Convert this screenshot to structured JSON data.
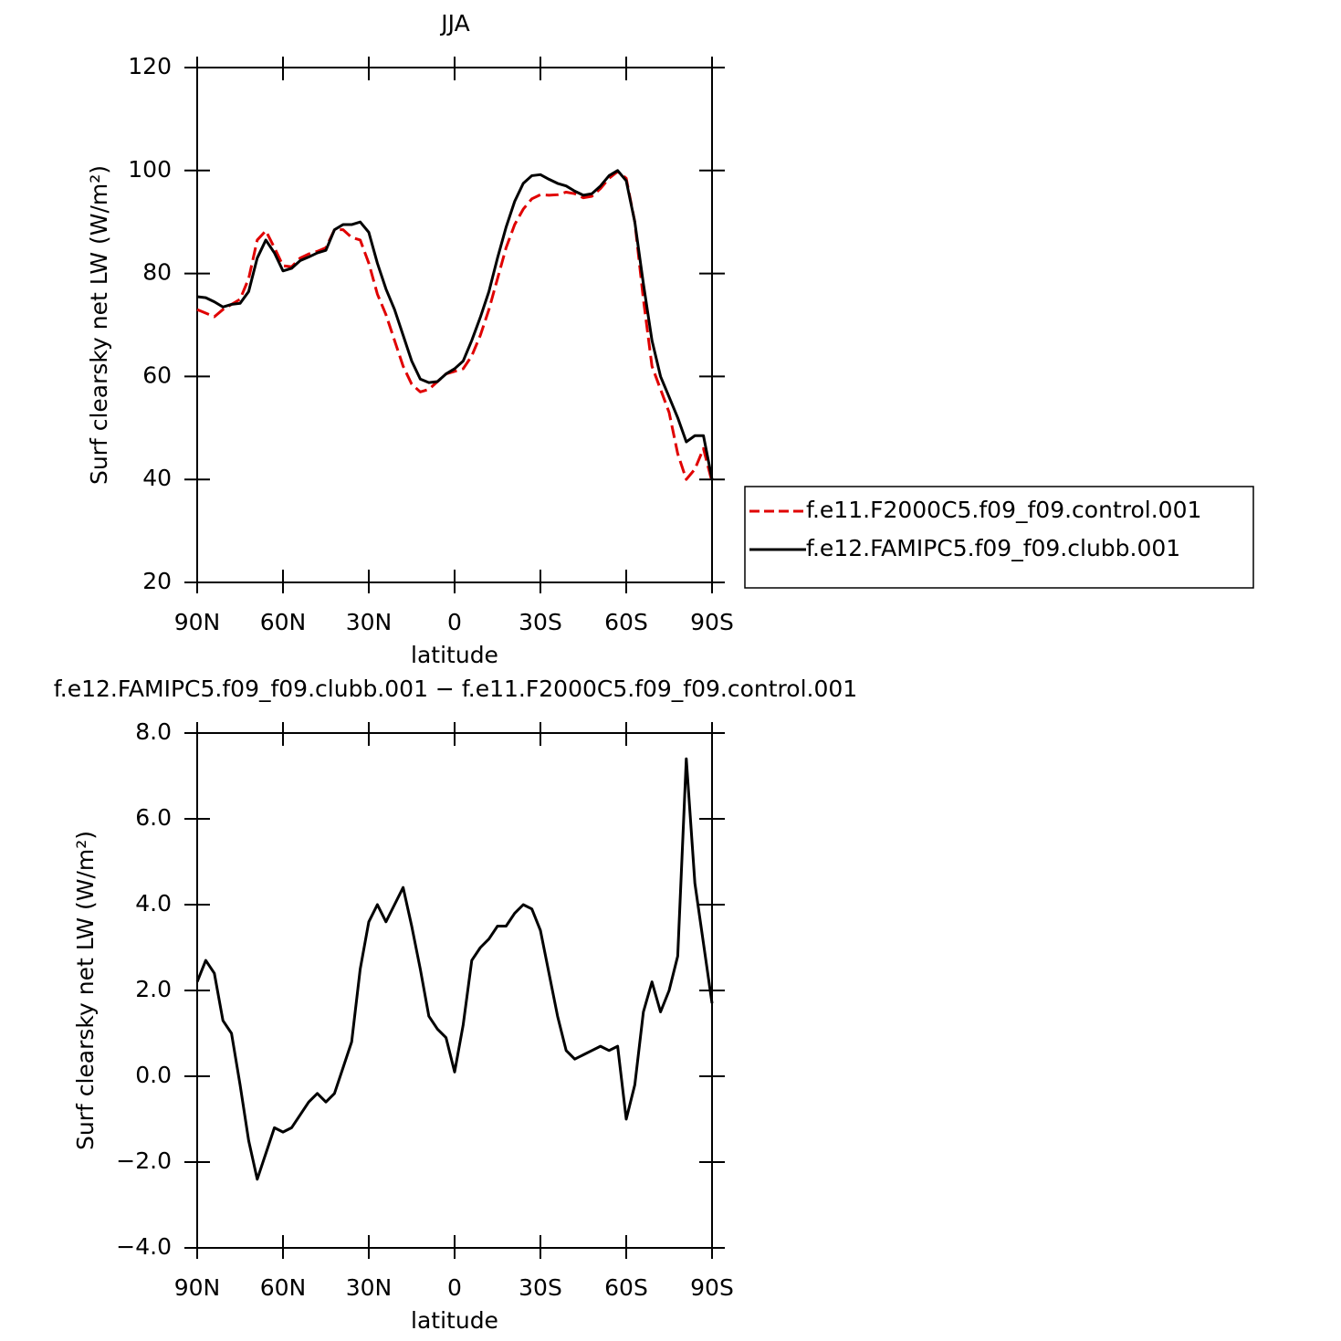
{
  "chart_data": [
    {
      "type": "line",
      "title": "JJA",
      "x_label": "latitude",
      "y_label": "Surf clearsky net LW (W/m²)",
      "x": [
        90,
        87,
        84,
        81,
        78,
        75,
        72,
        69,
        66,
        63,
        60,
        57,
        54,
        51,
        48,
        45,
        42,
        39,
        36,
        33,
        30,
        27,
        24,
        21,
        18,
        15,
        12,
        9,
        6,
        3,
        0,
        -3,
        -6,
        -9,
        -12,
        -15,
        -18,
        -21,
        -24,
        -27,
        -30,
        -33,
        -36,
        -39,
        -42,
        -45,
        -48,
        -51,
        -54,
        -57,
        -60,
        -63,
        -66,
        -69,
        -72,
        -75,
        -78,
        -81,
        -84,
        -87,
        -90
      ],
      "series": [
        {
          "name": "f.e11.F2000C5.f09_f09.control.001",
          "color": "#e00000",
          "dash": "dashed",
          "values": [
            73,
            72.3,
            71.6,
            73,
            74,
            75,
            79,
            86.5,
            88.3,
            85,
            81.5,
            81.3,
            83,
            83.8,
            84.3,
            85,
            88.5,
            88.5,
            87,
            86.5,
            82,
            76,
            72,
            67,
            62,
            58.5,
            57,
            57.5,
            59,
            60.5,
            61,
            61.5,
            64,
            68,
            73,
            79,
            85,
            89.5,
            92.5,
            94.5,
            95.3,
            95.2,
            95.3,
            95.8,
            95.5,
            94.7,
            95,
            96.5,
            98.5,
            99.8,
            98.5,
            90,
            75,
            62,
            57.5,
            53,
            45,
            40,
            42,
            46,
            39.5
          ]
        },
        {
          "name": "f.e12.FAMIPC5.f09_f09.clubb.001",
          "color": "#000000",
          "dash": "solid",
          "values": [
            75.5,
            75.3,
            74.5,
            73.5,
            74,
            74.2,
            76.5,
            83,
            86.5,
            84,
            80.5,
            81,
            82.5,
            83.2,
            84,
            84.5,
            88.5,
            89.5,
            89.5,
            90,
            88,
            82,
            77,
            73,
            68,
            63,
            59.5,
            58.8,
            59,
            60.5,
            61.5,
            63,
            67,
            71.5,
            76.5,
            83,
            89,
            94,
            97.5,
            99,
            99.2,
            98.3,
            97.5,
            97,
            96,
            95.2,
            95.5,
            97,
            99,
            100,
            98,
            90,
            78,
            67,
            60,
            56,
            52,
            47.3,
            48.5,
            48.5,
            40
          ]
        }
      ],
      "xlim": [
        90,
        -90
      ],
      "xticks": [
        {
          "value": 90,
          "label": "90N"
        },
        {
          "value": 60,
          "label": "60N"
        },
        {
          "value": 30,
          "label": "30N"
        },
        0,
        {
          "value": -30,
          "label": "30S"
        },
        {
          "value": -60,
          "label": "60S"
        },
        {
          "value": -90,
          "label": "90S"
        }
      ],
      "ylim": [
        20,
        120
      ],
      "yticks": [
        20,
        40,
        60,
        80,
        100,
        120
      ],
      "legend": "right"
    },
    {
      "type": "line",
      "title": "f.e12.FAMIPC5.f09_f09.clubb.001 − f.e11.F2000C5.f09_f09.control.001",
      "x_label": "latitude",
      "y_label": "Surf clearsky net LW (W/m²)",
      "x": [
        90,
        87,
        84,
        81,
        78,
        75,
        72,
        69,
        66,
        63,
        60,
        57,
        54,
        51,
        48,
        45,
        42,
        39,
        36,
        33,
        30,
        27,
        24,
        21,
        18,
        15,
        12,
        9,
        6,
        3,
        0,
        -3,
        -6,
        -9,
        -12,
        -15,
        -18,
        -21,
        -24,
        -27,
        -30,
        -33,
        -36,
        -39,
        -42,
        -45,
        -48,
        -51,
        -54,
        -57,
        -60,
        -63,
        -66,
        -69,
        -72,
        -75,
        -78,
        -81,
        -84,
        -87,
        -90
      ],
      "values": [
        2.2,
        2.7,
        2.4,
        1.3,
        1.0,
        -0.2,
        -1.5,
        -2.4,
        -1.8,
        -1.2,
        -1.3,
        -1.2,
        -0.9,
        -0.6,
        -0.4,
        -0.6,
        -0.4,
        0.2,
        0.8,
        2.5,
        3.6,
        4.0,
        3.6,
        4.0,
        4.4,
        3.5,
        2.5,
        1.4,
        1.1,
        0.9,
        0.1,
        1.2,
        2.7,
        3.0,
        3.2,
        3.5,
        3.5,
        3.8,
        4.0,
        3.9,
        3.4,
        2.4,
        1.4,
        0.6,
        0.4,
        0.5,
        0.6,
        0.7,
        0.6,
        0.7,
        -1.0,
        -0.2,
        1.5,
        2.2,
        1.5,
        2.0,
        2.8,
        7.4,
        4.5,
        3.1,
        1.7
      ],
      "color": "#000000",
      "xlim": [
        90,
        -90
      ],
      "xticks": [
        {
          "value": 90,
          "label": "90N"
        },
        {
          "value": 60,
          "label": "60N"
        },
        {
          "value": 30,
          "label": "30N"
        },
        0,
        {
          "value": -30,
          "label": "30S"
        },
        {
          "value": -60,
          "label": "60S"
        },
        {
          "value": -90,
          "label": "90S"
        }
      ],
      "ylim": [
        -4,
        8
      ],
      "yticks": [
        {
          "value": -4,
          "label": "−4.0"
        },
        {
          "value": -2,
          "label": "−2.0"
        },
        {
          "value": 0,
          "label": "0.0"
        },
        {
          "value": 2,
          "label": "2.0"
        },
        {
          "value": 4,
          "label": "4.0"
        },
        {
          "value": 6,
          "label": "6.0"
        },
        {
          "value": 8,
          "label": "8.0"
        }
      ]
    }
  ]
}
